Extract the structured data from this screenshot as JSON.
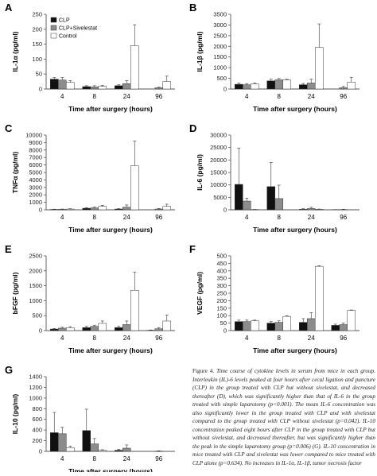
{
  "figure": {
    "caption_label": "Figure 4.",
    "caption_text": "Time course of cytokine levels in serum from mice in each group. Interleukin (IL)-6 levels peaked at four hours after cecal ligation and puncture (CLP) in the group treated with CLP but without sivelestat, and decreased thereafter (D), which was significantly higher than that of IL-6 in the group treated with simple laparotomy (p<0.001). The mean IL-6 concentration was also significantly lower in the group treated with CLP and with sivelestat compared to the group treated with CLP without sivelestat (p=0.042). IL-10 concentration peaked eight hours after CLP in the group treated with CLP but without sivelestat, and decreased thereafter, but was significantly higher than the peak in the simple laparotomy group (p=0.006) (G). IL-10 concentration in mice treated with CLP and sivelestat was lower compared to mice treated with CLP alone (p=0.634). No increases in IL-1α, IL-1β, tumor necrosis factor"
  },
  "colors": {
    "CLP": "#111111",
    "CLP+Sivelestat": "#8c8c8c",
    "Control": "#ffffff"
  },
  "chart_data": [
    {
      "panel": "A",
      "type": "bar",
      "title": "",
      "ylabel": "IL-1α (pg/ml)",
      "xlabel": "Time after surgery (hours)",
      "ylim": [
        0,
        250
      ],
      "yticks": [
        0,
        50,
        100,
        150,
        200,
        250
      ],
      "categories": [
        "4",
        "8",
        "24",
        "96"
      ],
      "legend": [
        "CLP",
        "CLP+Sivelestat",
        "Control"
      ],
      "legend_position": "top-left",
      "series": [
        {
          "name": "CLP",
          "values": [
            33,
            8,
            11,
            0
          ],
          "errors": [
            5,
            3,
            3,
            0
          ]
        },
        {
          "name": "CLP+Sivelestat",
          "values": [
            30,
            7,
            18,
            4
          ],
          "errors": [
            8,
            4,
            10,
            2
          ]
        },
        {
          "name": "Control",
          "values": [
            22,
            9,
            145,
            25
          ],
          "errors": [
            6,
            3,
            70,
            18
          ]
        }
      ]
    },
    {
      "panel": "B",
      "type": "bar",
      "title": "",
      "ylabel": "IL-1β (pg/ml)",
      "xlabel": "Time after surgery (hours)",
      "ylim": [
        0,
        3500
      ],
      "yticks": [
        0,
        500,
        1000,
        1500,
        2000,
        2500,
        3000,
        3500
      ],
      "categories": [
        "4",
        "8",
        "24",
        "96"
      ],
      "series": [
        {
          "name": "CLP",
          "values": [
            220,
            380,
            200,
            0
          ],
          "errors": [
            60,
            80,
            60,
            0
          ]
        },
        {
          "name": "CLP+Sivelestat",
          "values": [
            200,
            430,
            280,
            60
          ],
          "errors": [
            50,
            60,
            180,
            60
          ]
        },
        {
          "name": "Control",
          "values": [
            240,
            420,
            1950,
            320
          ],
          "errors": [
            40,
            40,
            1100,
            230
          ]
        }
      ]
    },
    {
      "panel": "C",
      "type": "bar",
      "title": "",
      "ylabel": "TNFα (pg/ml)",
      "xlabel": "Time after surgery (hours)",
      "ylim": [
        0,
        10000
      ],
      "yticks": [
        0,
        1000,
        2000,
        3000,
        4000,
        5000,
        6000,
        7000,
        8000,
        9000,
        10000
      ],
      "categories": [
        "4",
        "8",
        "24",
        "96"
      ],
      "series": [
        {
          "name": "CLP",
          "values": [
            50,
            200,
            100,
            0
          ],
          "errors": [
            30,
            80,
            60,
            0
          ]
        },
        {
          "name": "CLP+Sivelestat",
          "values": [
            60,
            250,
            350,
            100
          ],
          "errors": [
            40,
            100,
            300,
            80
          ]
        },
        {
          "name": "Control",
          "values": [
            100,
            450,
            5900,
            450
          ],
          "errors": [
            50,
            150,
            3300,
            300
          ]
        }
      ]
    },
    {
      "panel": "D",
      "type": "bar",
      "title": "",
      "ylabel": "IL-6 (pg/ml)",
      "xlabel": "Time after surgery (hours)",
      "ylim": [
        0,
        30000
      ],
      "yticks": [
        0,
        5000,
        10000,
        15000,
        20000,
        25000,
        30000
      ],
      "categories": [
        "4",
        "8",
        "24",
        "96"
      ],
      "series": [
        {
          "name": "CLP",
          "values": [
            10200,
            9300,
            200,
            50
          ],
          "errors": [
            14500,
            9700,
            200,
            50
          ]
        },
        {
          "name": "CLP+Sivelestat",
          "values": [
            3500,
            4500,
            500,
            100
          ],
          "errors": [
            1200,
            5400,
            500,
            100
          ]
        },
        {
          "name": "Control",
          "values": [
            100,
            0,
            200,
            0
          ],
          "errors": [
            50,
            0,
            100,
            0
          ]
        }
      ]
    },
    {
      "panel": "E",
      "type": "bar",
      "title": "",
      "ylabel": "bFGF (pg/ml)",
      "xlabel": "Time after surgery (hours)",
      "ylim": [
        0,
        2500
      ],
      "yticks": [
        0,
        500,
        1000,
        1500,
        2000,
        2500
      ],
      "categories": [
        "4",
        "8",
        "24",
        "96"
      ],
      "series": [
        {
          "name": "CLP",
          "values": [
            50,
            100,
            100,
            10
          ],
          "errors": [
            20,
            40,
            40,
            10
          ]
        },
        {
          "name": "CLP+Sivelestat",
          "values": [
            80,
            140,
            200,
            60
          ],
          "errors": [
            30,
            40,
            120,
            40
          ]
        },
        {
          "name": "Control",
          "values": [
            100,
            240,
            1350,
            320
          ],
          "errors": [
            30,
            80,
            600,
            200
          ]
        }
      ]
    },
    {
      "panel": "F",
      "type": "bar",
      "title": "",
      "ylabel": "VEGF (pg/ml)",
      "xlabel": "Time after surgery (hours)",
      "ylim": [
        0,
        500
      ],
      "yticks": [
        0,
        50,
        100,
        150,
        200,
        250,
        300,
        350,
        400,
        450,
        500
      ],
      "categories": [
        "4",
        "8",
        "24",
        "96"
      ],
      "series": [
        {
          "name": "CLP",
          "values": [
            60,
            50,
            55,
            35
          ],
          "errors": [
            10,
            10,
            25,
            8
          ]
        },
        {
          "name": "CLP+Sivelestat",
          "values": [
            60,
            55,
            80,
            40
          ],
          "errors": [
            10,
            10,
            40,
            10
          ]
        },
        {
          "name": "Control",
          "values": [
            65,
            95,
            430,
            135
          ],
          "errors": [
            5,
            5,
            5,
            3
          ]
        }
      ]
    },
    {
      "panel": "G",
      "type": "bar",
      "title": "",
      "ylabel": "IL-10 (pg/ml)",
      "xlabel": "Time after surgery (hours)",
      "ylim": [
        0,
        1400
      ],
      "yticks": [
        0,
        200,
        400,
        600,
        800,
        1000,
        1200,
        1400
      ],
      "categories": [
        "4",
        "8",
        "24",
        "96"
      ],
      "series": [
        {
          "name": "CLP",
          "values": [
            350,
            390,
            20,
            0
          ],
          "errors": [
            380,
            400,
            20,
            0
          ]
        },
        {
          "name": "CLP+Sivelestat",
          "values": [
            330,
            140,
            60,
            5
          ],
          "errors": [
            120,
            100,
            60,
            5
          ]
        },
        {
          "name": "Control",
          "values": [
            70,
            20,
            0,
            0
          ],
          "errors": [
            30,
            10,
            0,
            0
          ]
        }
      ]
    }
  ]
}
